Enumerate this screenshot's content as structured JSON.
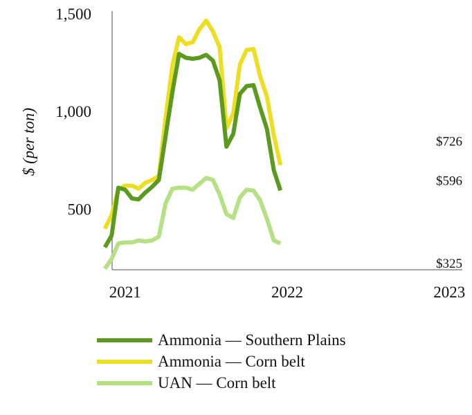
{
  "chart_data": {
    "type": "line",
    "title": "",
    "xlabel": "",
    "ylabel": "$ (per ton)",
    "ylim": [
      190,
      1500
    ],
    "xlim": [
      2020.92,
      2023.08
    ],
    "y_ticks": [
      {
        "value": 500,
        "label": "500"
      },
      {
        "value": 1000,
        "label": "1,000"
      },
      {
        "value": 1500,
        "label": "1,500"
      }
    ],
    "x_ticks": [
      {
        "value": 2021,
        "label": "2021"
      },
      {
        "value": 2022,
        "label": "2022"
      },
      {
        "value": 2023,
        "label": "2023"
      }
    ],
    "series": [
      {
        "name": "Ammonia — Southern Plains",
        "color": "#5b9a1f",
        "end_label": "$596",
        "points": [
          [
            2020.875,
            305
          ],
          [
            2020.917,
            365
          ],
          [
            2020.958,
            610
          ],
          [
            2021.0,
            600
          ],
          [
            2021.042,
            555
          ],
          [
            2021.083,
            550
          ],
          [
            2021.125,
            585
          ],
          [
            2021.167,
            615
          ],
          [
            2021.208,
            650
          ],
          [
            2021.25,
            875
          ],
          [
            2021.292,
            1100
          ],
          [
            2021.333,
            1295
          ],
          [
            2021.375,
            1275
          ],
          [
            2021.417,
            1270
          ],
          [
            2021.458,
            1275
          ],
          [
            2021.5,
            1290
          ],
          [
            2021.542,
            1260
          ],
          [
            2021.583,
            1160
          ],
          [
            2021.625,
            820
          ],
          [
            2021.667,
            885
          ],
          [
            2021.708,
            1090
          ],
          [
            2021.75,
            1130
          ],
          [
            2021.792,
            1135
          ],
          [
            2021.833,
            1020
          ],
          [
            2021.875,
            910
          ],
          [
            2021.917,
            700
          ],
          [
            2021.958,
            596
          ]
        ]
      },
      {
        "name": "Ammonia — Corn belt",
        "color": "#ecde22",
        "end_label": "$726",
        "points": [
          [
            2020.875,
            400
          ],
          [
            2020.917,
            470
          ],
          [
            2020.958,
            600
          ],
          [
            2021.0,
            620
          ],
          [
            2021.042,
            620
          ],
          [
            2021.083,
            605
          ],
          [
            2021.125,
            635
          ],
          [
            2021.167,
            650
          ],
          [
            2021.208,
            670
          ],
          [
            2021.25,
            970
          ],
          [
            2021.292,
            1235
          ],
          [
            2021.333,
            1380
          ],
          [
            2021.375,
            1345
          ],
          [
            2021.417,
            1355
          ],
          [
            2021.458,
            1420
          ],
          [
            2021.5,
            1465
          ],
          [
            2021.542,
            1410
          ],
          [
            2021.583,
            1330
          ],
          [
            2021.625,
            915
          ],
          [
            2021.667,
            990
          ],
          [
            2021.708,
            1240
          ],
          [
            2021.75,
            1315
          ],
          [
            2021.792,
            1320
          ],
          [
            2021.833,
            1180
          ],
          [
            2021.875,
            1075
          ],
          [
            2021.917,
            880
          ],
          [
            2021.958,
            726
          ]
        ]
      },
      {
        "name": "UAN — Corn belt",
        "color": "#b5e083",
        "end_label": "$325",
        "points": [
          [
            2020.875,
            195
          ],
          [
            2020.917,
            245
          ],
          [
            2020.958,
            325
          ],
          [
            2021.0,
            330
          ],
          [
            2021.042,
            330
          ],
          [
            2021.083,
            340
          ],
          [
            2021.125,
            335
          ],
          [
            2021.167,
            340
          ],
          [
            2021.208,
            360
          ],
          [
            2021.25,
            530
          ],
          [
            2021.292,
            605
          ],
          [
            2021.333,
            610
          ],
          [
            2021.375,
            610
          ],
          [
            2021.417,
            600
          ],
          [
            2021.458,
            630
          ],
          [
            2021.5,
            660
          ],
          [
            2021.542,
            650
          ],
          [
            2021.583,
            575
          ],
          [
            2021.625,
            475
          ],
          [
            2021.667,
            455
          ],
          [
            2021.708,
            560
          ],
          [
            2021.75,
            600
          ],
          [
            2021.792,
            595
          ],
          [
            2021.833,
            545
          ],
          [
            2021.875,
            450
          ],
          [
            2021.917,
            340
          ],
          [
            2021.958,
            325
          ]
        ]
      }
    ],
    "legend": {
      "placement": "bottom",
      "entries": [
        {
          "label": "Ammonia — Southern Plains",
          "color": "#5b9a1f"
        },
        {
          "label": "Ammonia — Corn belt",
          "color": "#ecde22"
        },
        {
          "label": "UAN — Corn belt",
          "color": "#b5e083"
        }
      ]
    },
    "grid": false
  }
}
